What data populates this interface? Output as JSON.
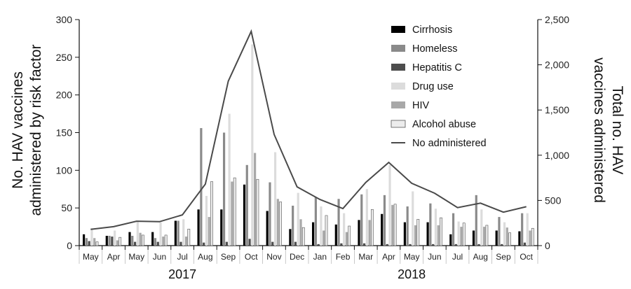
{
  "chart_data": {
    "type": "bar",
    "categories": [
      "May",
      "Apr",
      "May",
      "Jun",
      "Jul",
      "Aug",
      "Sep",
      "Oct",
      "Nov",
      "Dec",
      "Jan",
      "Feb",
      "Mar",
      "Apr",
      "May",
      "Jun",
      "Jul",
      "Aug",
      "Sep",
      "Oct"
    ],
    "year_labels": [
      {
        "label": "2017",
        "start_index": 0,
        "end_index": 8
      },
      {
        "label": "2018",
        "start_index": 9,
        "end_index": 19
      }
    ],
    "ylabel": "No. HAV vaccines administered by risk factor",
    "y2label": "Total no. HAV vaccines administered",
    "ylim": [
      0,
      300
    ],
    "y2lim": [
      0,
      2500
    ],
    "yticks": [
      "0",
      "50",
      "100",
      "150",
      "200",
      "250",
      "300"
    ],
    "y2ticks": [
      "0",
      "500",
      "1,000",
      "1,500",
      "2,000",
      "2,500"
    ],
    "series": [
      {
        "name": "Cirrhosis",
        "color": "#000000",
        "values": [
          15,
          13,
          18,
          18,
          33,
          48,
          48,
          81,
          46,
          22,
          31,
          28,
          34,
          42,
          31,
          31,
          15,
          20,
          20,
          19
        ]
      },
      {
        "name": "Homeless",
        "color": "#8a8a8a",
        "values": [
          10,
          13,
          13,
          10,
          33,
          156,
          150,
          107,
          84,
          53,
          64,
          62,
          68,
          67,
          52,
          56,
          43,
          67,
          38,
          43
        ]
      },
      {
        "name": "Hepatitis C",
        "color": "#4d4d4d",
        "values": [
          6,
          12,
          5,
          5,
          5,
          4,
          5,
          9,
          5,
          5,
          2,
          3,
          3,
          2,
          2,
          2,
          2,
          2,
          2,
          4
        ]
      },
      {
        "name": "Drug use",
        "color": "#dcdcdc",
        "values": [
          23,
          20,
          31,
          31,
          35,
          66,
          175,
          267,
          124,
          70,
          52,
          43,
          75,
          107,
          72,
          49,
          32,
          48,
          31,
          43
        ]
      },
      {
        "name": "HIV",
        "color": "#a8a8a8",
        "values": [
          10,
          7,
          17,
          12,
          12,
          38,
          85,
          123,
          62,
          35,
          20,
          18,
          34,
          54,
          27,
          27,
          25,
          25,
          24,
          20
        ]
      },
      {
        "name": "Alcohol abuse",
        "color": "#ececec",
        "values": [
          5,
          11,
          14,
          14,
          22,
          85,
          90,
          88,
          58,
          24,
          40,
          26,
          48,
          55,
          35,
          37,
          30,
          27,
          17,
          23
        ]
      }
    ],
    "line": {
      "name": "No administered",
      "color": "#4a4a4a",
      "axis": "right",
      "values": [
        180,
        210,
        270,
        265,
        340,
        680,
        1820,
        2370,
        1230,
        650,
        510,
        410,
        700,
        920,
        690,
        580,
        420,
        470,
        370,
        430
      ]
    }
  }
}
